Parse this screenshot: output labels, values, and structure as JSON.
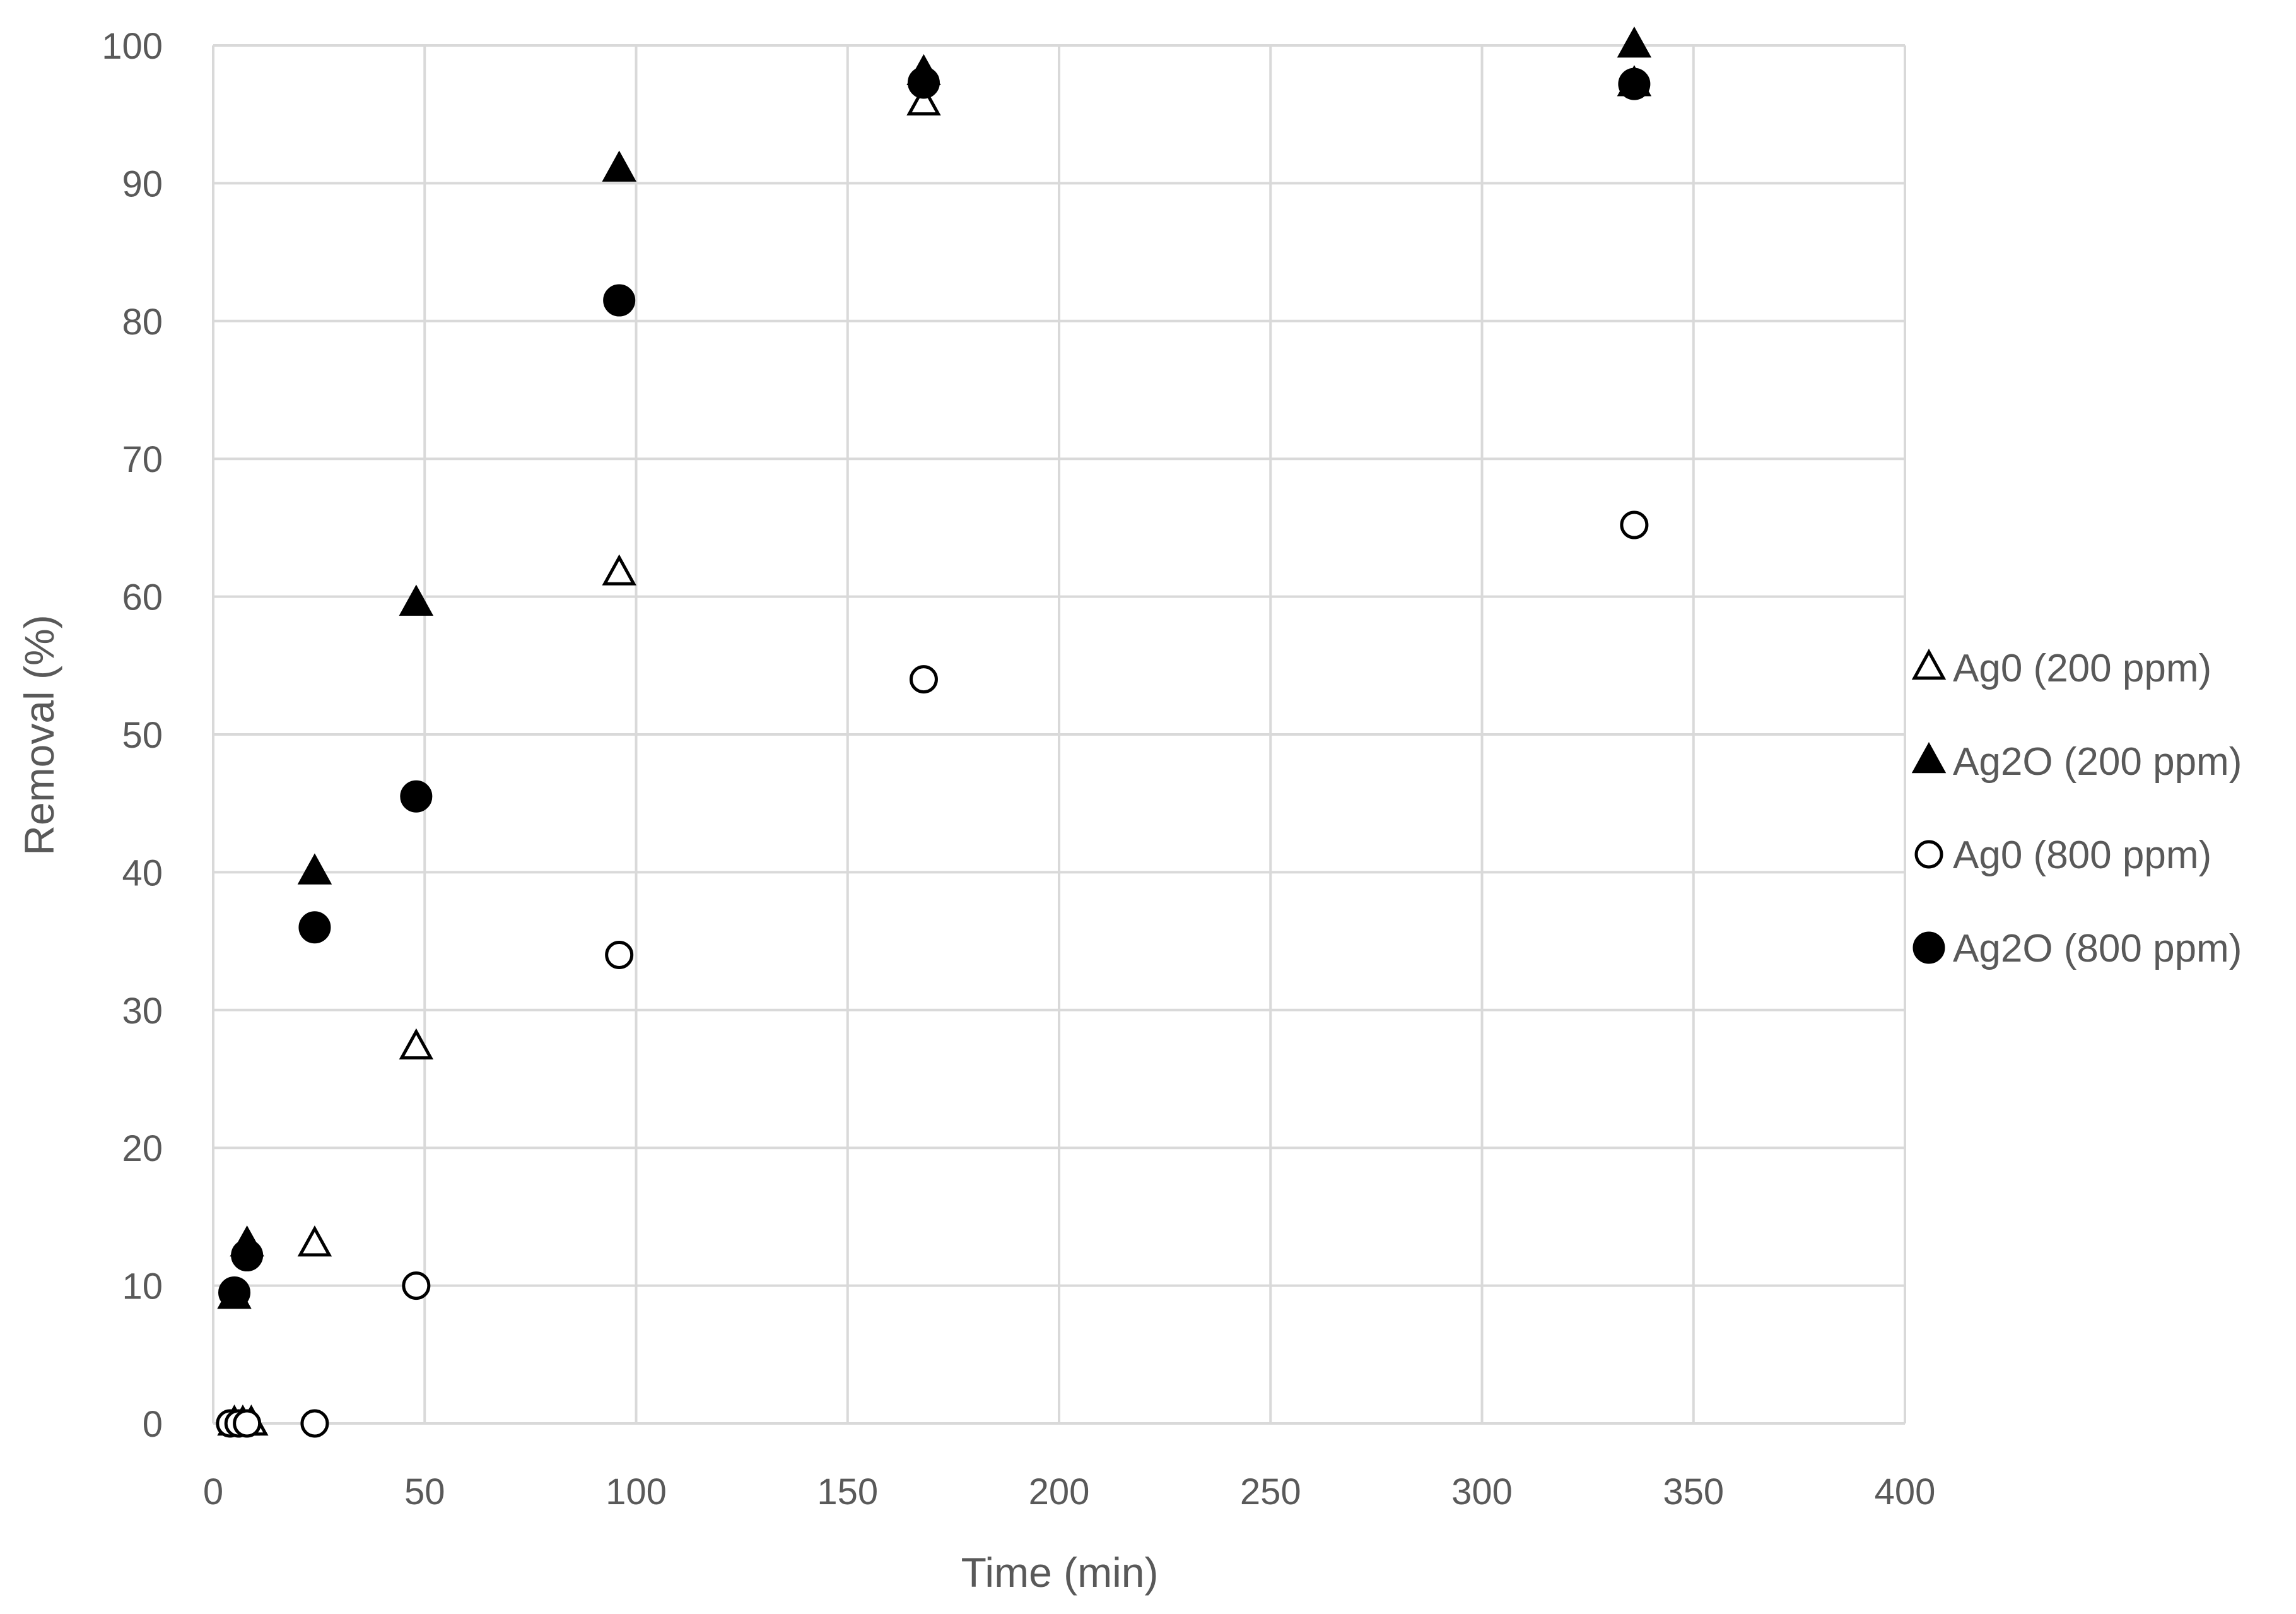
{
  "chart_data": {
    "type": "scatter",
    "xlabel": "Time (min)",
    "ylabel": "Removal (%)",
    "xlim": [
      0,
      400
    ],
    "ylim": [
      0,
      100
    ],
    "x_ticks": [
      0,
      50,
      100,
      150,
      200,
      250,
      300,
      350,
      400
    ],
    "y_ticks": [
      0,
      10,
      20,
      30,
      40,
      50,
      60,
      70,
      80,
      90,
      100
    ],
    "grid": true,
    "legend_position": "right",
    "series": [
      {
        "name": "Ag0 (200 ppm)",
        "marker": "triangle-open",
        "color": "#000000",
        "points": [
          [
            5,
            0
          ],
          [
            7,
            0
          ],
          [
            9,
            0
          ],
          [
            24,
            13
          ],
          [
            48,
            27.3
          ],
          [
            96,
            61.7
          ],
          [
            168,
            95.8
          ],
          [
            336,
            97.2
          ]
        ]
      },
      {
        "name": "Ag2O (200 ppm)",
        "marker": "triangle-filled",
        "color": "#000000",
        "points": [
          [
            5,
            9.2
          ],
          [
            8,
            13
          ],
          [
            24,
            40
          ],
          [
            48,
            59.5
          ],
          [
            96,
            91
          ],
          [
            168,
            98
          ],
          [
            336,
            100
          ]
        ]
      },
      {
        "name": "Ag0 (800 ppm)",
        "marker": "circle-open",
        "color": "#000000",
        "points": [
          [
            4,
            0
          ],
          [
            6,
            0
          ],
          [
            8,
            0
          ],
          [
            24,
            0
          ],
          [
            48,
            10
          ],
          [
            96,
            34
          ],
          [
            168,
            54
          ],
          [
            336,
            65.2
          ]
        ]
      },
      {
        "name": "Ag2O (800 ppm)",
        "marker": "circle-filled",
        "color": "#000000",
        "points": [
          [
            5,
            9.5
          ],
          [
            8,
            12.2
          ],
          [
            24,
            36
          ],
          [
            48,
            45.5
          ],
          [
            96,
            81.5
          ],
          [
            168,
            97.3
          ],
          [
            336,
            97.2
          ]
        ]
      }
    ]
  }
}
